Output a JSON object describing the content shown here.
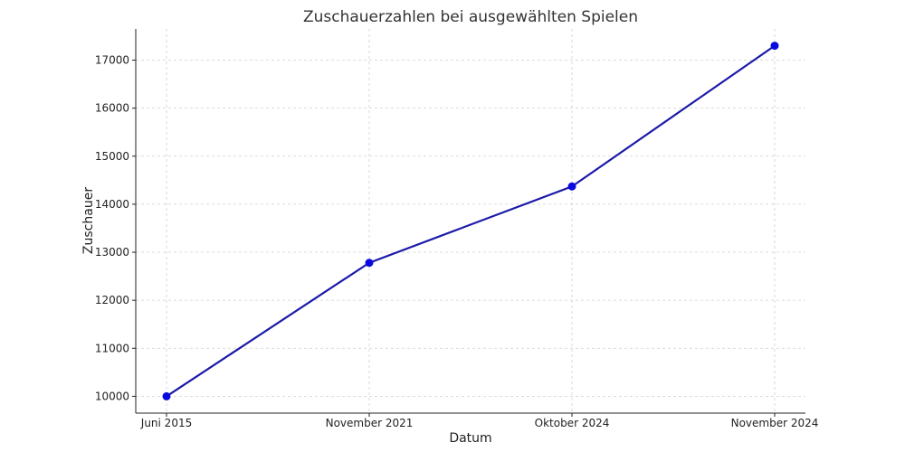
{
  "chart_data": {
    "type": "line",
    "title": "Zuschauerzahlen bei ausgewählten Spielen",
    "xlabel": "Datum",
    "ylabel": "Zuschauer",
    "categories": [
      "Juni 2015",
      "November 2021",
      "Oktober 2024",
      "November 2024"
    ],
    "series": [
      {
        "values": [
          10000,
          12780,
          14370,
          17300
        ]
      }
    ],
    "ylim": [
      9650,
      17650
    ],
    "yticks": [
      10000,
      11000,
      12000,
      13000,
      14000,
      15000,
      16000,
      17000
    ],
    "grid": true,
    "colors": {
      "series": "#1a1aa8",
      "marker": "#0a0ae0"
    }
  }
}
